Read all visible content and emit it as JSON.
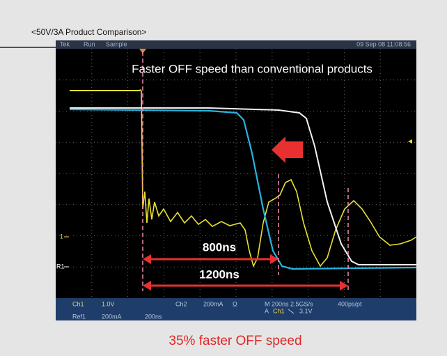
{
  "header": {
    "label": "<50V/3A Product Comparison>"
  },
  "scope": {
    "status": [
      "Tek",
      "Run",
      "Sample",
      "09 Sep 08 11:08:56"
    ],
    "markers": [
      "1",
      "R1"
    ],
    "footer": {
      "row1": [
        "Ch1",
        "1.0V",
        "Ch2",
        "200mA",
        "Ω",
        "M 200ns 2.5GS/s",
        "400ps/pt"
      ],
      "row2": [
        "A",
        "Ch1",
        "3.1V"
      ],
      "row3": [
        "Ref1",
        "200mA",
        "200ns"
      ]
    }
  },
  "annotations": {
    "headline": "Faster OFF speed than conventional products",
    "short": "800ns",
    "long": "1200ns"
  },
  "caption": "35% faster OFF speed"
}
